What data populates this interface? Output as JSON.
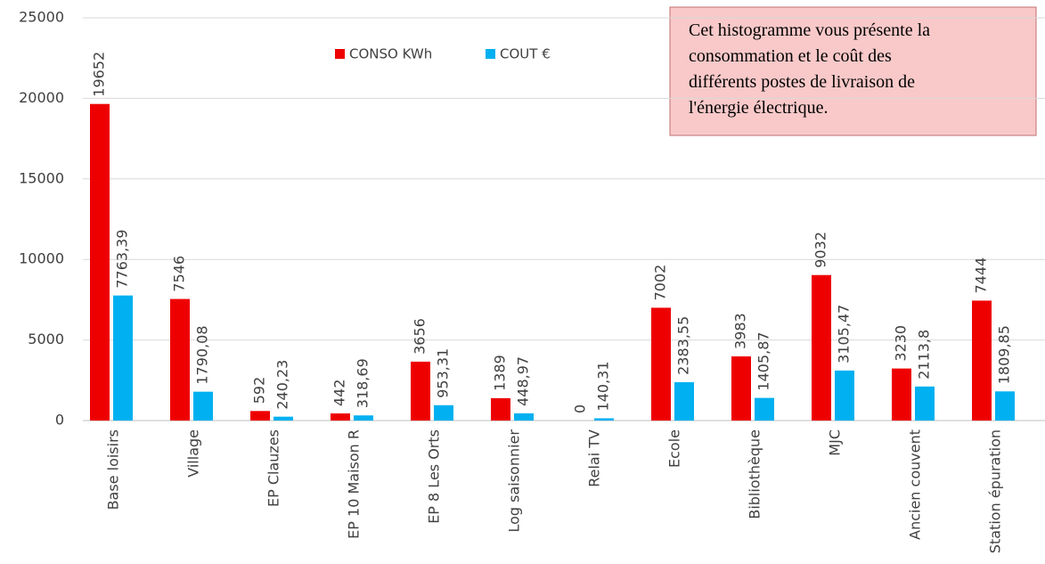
{
  "chart_data": {
    "type": "bar",
    "categories": [
      "Base loisirs",
      "Village",
      "EP Clauzes",
      "EP 10 Maison R",
      "EP 8 Les Orts",
      "Log saisonnier",
      "Relai TV",
      "Ecole",
      "Bibliothèque",
      "MJC",
      "Ancien couvent",
      "Station épuration"
    ],
    "series": [
      {
        "name": "CONSO KWh",
        "color": "#ee0000",
        "values": [
          19652,
          7546,
          592,
          442,
          3656,
          1389,
          0,
          7002,
          3983,
          9032,
          3230,
          7444
        ]
      },
      {
        "name": "COUT €",
        "color": "#00b0f0",
        "values": [
          7763.39,
          1790.08,
          240.23,
          318.69,
          953.31,
          448.97,
          140.31,
          2383.55,
          1405.87,
          3105.47,
          2113.8,
          1809.85
        ],
        "value_labels": [
          "7763,39",
          "1790,08",
          "240,23",
          "318,69",
          "953,31",
          "448,97",
          "140,31",
          "2383,55",
          "1405,87",
          "3105,47",
          "2113,8",
          "1809,85"
        ]
      }
    ],
    "ylim": [
      0,
      25000
    ],
    "yticks": [
      0,
      5000,
      10000,
      15000,
      20000,
      25000
    ],
    "grid": true,
    "annotation": [
      "Cet histogramme vous présente la",
      "consommation et le coût des",
      "différents postes de livraison de",
      "l'énergie électrique."
    ]
  }
}
